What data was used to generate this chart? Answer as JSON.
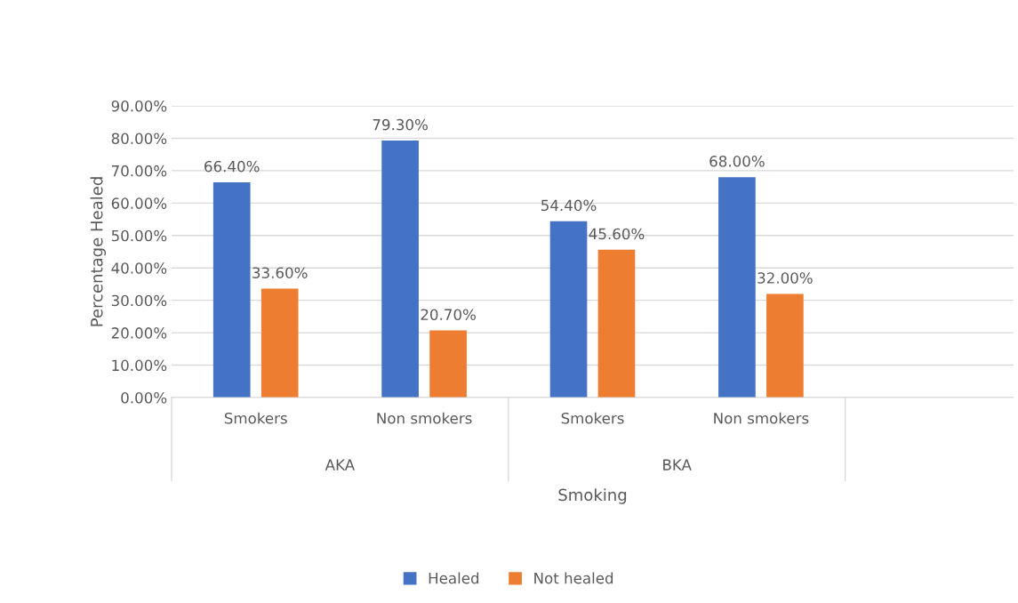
{
  "chart_data": {
    "type": "bar",
    "xlabel": "Smoking",
    "ylabel": "Percentage Healed",
    "categories": [
      "Smokers",
      "Non smokers",
      "Smokers",
      "Non smokers",
      null
    ],
    "series": [
      {
        "name": "Healed",
        "color": "#4472c4",
        "values": [
          66.4,
          79.3,
          54.4,
          68.0,
          null
        ],
        "value_labels": [
          "66.40%",
          "79.30%",
          "54.40%",
          "68.00%",
          null
        ]
      },
      {
        "name": "Not healed",
        "color": "#ed7d31",
        "values": [
          33.6,
          20.7,
          45.6,
          32.0,
          null
        ],
        "value_labels": [
          "33.60%",
          "20.70%",
          "45.60%",
          "32.00%",
          null
        ]
      }
    ],
    "annotations": [
      "AKA",
      "BKA"
    ],
    "ylim": [
      0,
      90
    ],
    "yticks": [
      {
        "value": 0,
        "label": "0.00%"
      },
      {
        "value": 10,
        "label": "10.00%"
      },
      {
        "value": 20,
        "label": "20.00%"
      },
      {
        "value": 30,
        "label": "30.00%"
      },
      {
        "value": 40,
        "label": "40.00%"
      },
      {
        "value": 50,
        "label": "50.00%"
      },
      {
        "value": 60,
        "label": "60.00%"
      },
      {
        "value": 70,
        "label": "70.00%"
      },
      {
        "value": 80,
        "label": "80.00%"
      },
      {
        "value": 90,
        "label": "90.00%"
      }
    ],
    "grid": "y",
    "legend": "bottom"
  }
}
